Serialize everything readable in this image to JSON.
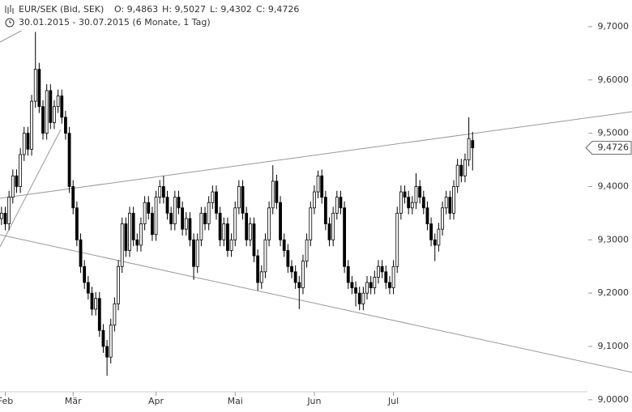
{
  "header": {
    "instrument": "EUR/SEK (Bid, SEK)",
    "open": "O: 9,4863",
    "high": "H: 9,5027",
    "low": "L: 9,4302",
    "close": "C: 9,4726",
    "period": "30.01.2015 - 30.07.2015 (6 Monate, 1 Tag)"
  },
  "chart_data": {
    "type": "candlestick",
    "last_price": {
      "value": 9.4726,
      "label": "9,4726"
    },
    "xlim": [
      -0.4,
      167.3
    ],
    "xticks": [
      {
        "value": 1,
        "label": "Feb"
      },
      {
        "value": 19,
        "label": "Mär"
      },
      {
        "value": 41,
        "label": "Apr"
      },
      {
        "value": 62,
        "label": "Mai"
      },
      {
        "value": 83,
        "label": "Jun"
      },
      {
        "value": 104,
        "label": "Jul"
      }
    ],
    "ylim": [
      8.977,
      9.75
    ],
    "yticks": [
      {
        "value": 9.0,
        "label": "9,0000"
      },
      {
        "value": 9.1,
        "label": "9,1000"
      },
      {
        "value": 9.2,
        "label": "9,2000"
      },
      {
        "value": 9.3,
        "label": "9,3000"
      },
      {
        "value": 9.4,
        "label": "9,4000"
      },
      {
        "value": 9.5,
        "label": "9,5000"
      },
      {
        "value": 9.6,
        "label": "9,6000"
      },
      {
        "value": 9.7,
        "label": "9,7000"
      }
    ],
    "up_color": "#ffffff",
    "down_color": "#000000",
    "line_color": "#000000",
    "open": [
      9.34,
      9.35,
      9.33,
      9.38,
      9.42,
      9.4,
      9.46,
      9.5,
      9.47,
      9.56,
      9.62,
      9.55,
      9.5,
      9.58,
      9.52,
      9.55,
      9.57,
      9.53,
      9.5,
      9.4,
      9.36,
      9.3,
      9.25,
      9.22,
      9.2,
      9.17,
      9.19,
      9.13,
      9.1,
      9.08,
      9.14,
      9.18,
      9.25,
      9.33,
      9.28,
      9.35,
      9.3,
      9.29,
      9.33,
      9.37,
      9.35,
      9.31,
      9.38,
      9.4,
      9.38,
      9.35,
      9.33,
      9.38,
      9.36,
      9.32,
      9.34,
      9.3,
      9.25,
      9.3,
      9.35,
      9.33,
      9.37,
      9.39,
      9.35,
      9.3,
      9.33,
      9.28,
      9.3,
      9.36,
      9.4,
      9.35,
      9.3,
      9.33,
      9.27,
      9.22,
      9.24,
      9.3,
      9.36,
      9.41,
      9.37,
      9.3,
      9.28,
      9.25,
      9.24,
      9.22,
      9.21,
      9.26,
      9.3,
      9.36,
      9.39,
      9.42,
      9.38,
      9.33,
      9.3,
      9.35,
      9.38,
      9.36,
      9.25,
      9.22,
      9.21,
      9.2,
      9.18,
      9.2,
      9.22,
      9.21,
      9.23,
      9.25,
      9.24,
      9.22,
      9.21,
      9.25,
      9.35,
      9.39,
      9.38,
      9.36,
      9.37,
      9.4,
      9.38,
      9.36,
      9.33,
      9.3,
      9.29,
      9.32,
      9.36,
      9.38,
      9.35,
      9.4,
      9.44,
      9.42,
      9.45,
      9.4863
    ],
    "high": [
      9.362,
      9.362,
      9.392,
      9.432,
      9.432,
      9.472,
      9.512,
      9.512,
      9.572,
      9.69,
      9.632,
      9.562,
      9.592,
      9.592,
      9.562,
      9.582,
      9.582,
      9.542,
      9.512,
      9.412,
      9.372,
      9.312,
      9.262,
      9.232,
      9.212,
      9.202,
      9.202,
      9.142,
      9.112,
      9.152,
      9.192,
      9.262,
      9.342,
      9.342,
      9.362,
      9.362,
      9.312,
      9.342,
      9.382,
      9.382,
      9.362,
      9.392,
      9.412,
      9.42,
      9.392,
      9.362,
      9.392,
      9.392,
      9.372,
      9.352,
      9.352,
      9.312,
      9.312,
      9.362,
      9.362,
      9.382,
      9.402,
      9.402,
      9.362,
      9.342,
      9.342,
      9.312,
      9.372,
      9.412,
      9.412,
      9.362,
      9.342,
      9.342,
      9.282,
      9.252,
      9.312,
      9.372,
      9.44,
      9.422,
      9.382,
      9.312,
      9.292,
      9.262,
      9.252,
      9.232,
      9.272,
      9.312,
      9.372,
      9.402,
      9.43,
      9.432,
      9.392,
      9.342,
      9.362,
      9.392,
      9.392,
      9.372,
      9.262,
      9.232,
      9.222,
      9.212,
      9.212,
      9.232,
      9.232,
      9.242,
      9.262,
      9.262,
      9.252,
      9.232,
      9.262,
      9.362,
      9.402,
      9.402,
      9.392,
      9.382,
      9.425,
      9.412,
      9.392,
      9.372,
      9.342,
      9.312,
      9.332,
      9.372,
      9.392,
      9.392,
      9.412,
      9.452,
      9.452,
      9.462,
      9.53,
      9.5027
    ],
    "low": [
      9.328,
      9.318,
      9.318,
      9.368,
      9.388,
      9.388,
      9.448,
      9.458,
      9.458,
      9.548,
      9.538,
      9.488,
      9.488,
      9.508,
      9.508,
      9.538,
      9.518,
      9.488,
      9.388,
      9.348,
      9.288,
      9.238,
      9.208,
      9.188,
      9.158,
      9.158,
      9.118,
      9.088,
      9.045,
      9.068,
      9.128,
      9.168,
      9.238,
      9.268,
      9.268,
      9.288,
      9.278,
      9.278,
      9.318,
      9.338,
      9.298,
      9.298,
      9.368,
      9.368,
      9.338,
      9.318,
      9.318,
      9.348,
      9.308,
      9.308,
      9.288,
      9.225,
      9.238,
      9.288,
      9.318,
      9.318,
      9.358,
      9.338,
      9.288,
      9.288,
      9.268,
      9.268,
      9.288,
      9.348,
      9.338,
      9.288,
      9.288,
      9.258,
      9.205,
      9.208,
      9.228,
      9.288,
      9.348,
      9.358,
      9.288,
      9.268,
      9.238,
      9.228,
      9.208,
      9.17,
      9.198,
      9.248,
      9.288,
      9.348,
      9.378,
      9.368,
      9.318,
      9.288,
      9.288,
      9.338,
      9.348,
      9.238,
      9.208,
      9.198,
      9.175,
      9.168,
      9.168,
      9.188,
      9.198,
      9.198,
      9.218,
      9.228,
      9.208,
      9.198,
      9.198,
      9.238,
      9.338,
      9.368,
      9.348,
      9.348,
      9.358,
      9.368,
      9.348,
      9.318,
      9.288,
      9.26,
      9.278,
      9.308,
      9.348,
      9.338,
      9.338,
      9.388,
      9.408,
      9.408,
      9.438,
      9.4302
    ],
    "close": [
      9.35,
      9.33,
      9.38,
      9.42,
      9.4,
      9.46,
      9.5,
      9.47,
      9.56,
      9.62,
      9.55,
      9.5,
      9.58,
      9.52,
      9.55,
      9.57,
      9.53,
      9.5,
      9.4,
      9.36,
      9.3,
      9.25,
      9.22,
      9.2,
      9.17,
      9.19,
      9.13,
      9.1,
      9.08,
      9.14,
      9.18,
      9.25,
      9.33,
      9.28,
      9.35,
      9.3,
      9.29,
      9.33,
      9.37,
      9.35,
      9.31,
      9.38,
      9.4,
      9.38,
      9.35,
      9.33,
      9.38,
      9.36,
      9.32,
      9.34,
      9.3,
      9.25,
      9.3,
      9.35,
      9.33,
      9.37,
      9.39,
      9.35,
      9.3,
      9.33,
      9.28,
      9.3,
      9.36,
      9.4,
      9.35,
      9.3,
      9.33,
      9.27,
      9.22,
      9.24,
      9.3,
      9.36,
      9.41,
      9.37,
      9.3,
      9.28,
      9.25,
      9.24,
      9.22,
      9.21,
      9.26,
      9.3,
      9.36,
      9.39,
      9.42,
      9.38,
      9.33,
      9.3,
      9.35,
      9.38,
      9.36,
      9.25,
      9.22,
      9.21,
      9.2,
      9.18,
      9.2,
      9.22,
      9.21,
      9.23,
      9.25,
      9.24,
      9.22,
      9.21,
      9.25,
      9.35,
      9.39,
      9.38,
      9.36,
      9.37,
      9.4,
      9.38,
      9.36,
      9.33,
      9.3,
      9.29,
      9.32,
      9.36,
      9.38,
      9.35,
      9.4,
      9.44,
      9.42,
      9.45,
      9.49,
      9.4726
    ]
  }
}
